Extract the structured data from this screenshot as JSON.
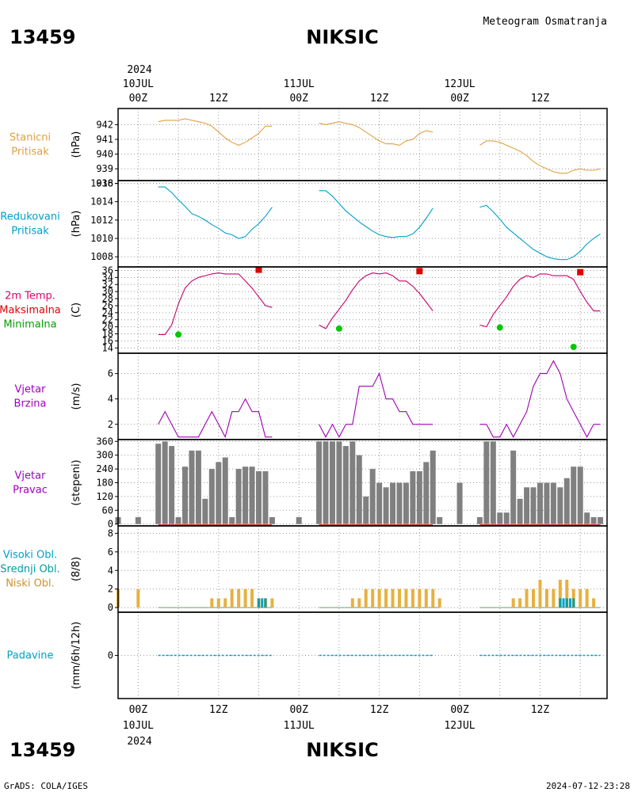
{
  "header": {
    "station_id": "13459",
    "station_name": "NIKSIC",
    "chart_title": "Meteogram Osmatranja",
    "year": "2024",
    "footer_left": "GrADS: COLA/IGES",
    "footer_right": "2024-07-12-23:28"
  },
  "time_axis": {
    "ticks": [
      {
        "t": 0,
        "label": "00Z"
      },
      {
        "t": 12,
        "label": "12Z"
      },
      {
        "t": 24,
        "label": "00Z"
      },
      {
        "t": 36,
        "label": "12Z"
      },
      {
        "t": 48,
        "label": "00Z"
      },
      {
        "t": 60,
        "label": "12Z"
      }
    ],
    "days": [
      {
        "t": 0,
        "label": "10JUL"
      },
      {
        "t": 24,
        "label": "11JUL"
      },
      {
        "t": 48,
        "label": "12JUL"
      }
    ],
    "range": [
      -3,
      70
    ]
  },
  "chart_data": [
    {
      "type": "line",
      "panel": "station-pressure",
      "labels": [
        "Stanicni",
        "Pritisak"
      ],
      "label_color": "#e0a040",
      "ylabel": "(hPa)",
      "ylim": [
        938.2,
        943.1
      ],
      "yticks": [
        938,
        939,
        940,
        941,
        942
      ],
      "color": "#e0a040",
      "segments": [
        {
          "x": [
            3,
            4,
            5,
            6,
            7,
            8,
            9,
            10,
            11,
            12,
            13,
            14,
            15,
            16,
            17,
            18,
            19,
            20
          ],
          "y": [
            942.2,
            942.3,
            942.3,
            942.3,
            942.4,
            942.3,
            942.2,
            942.1,
            941.9,
            941.5,
            941.1,
            940.8,
            940.6,
            940.8,
            941.1,
            941.4,
            941.9,
            941.9
          ]
        },
        {
          "x": [
            27,
            28,
            29,
            30,
            31,
            32,
            33,
            34,
            35,
            36,
            37,
            38,
            39,
            40,
            41,
            42,
            43,
            44
          ],
          "y": [
            942.1,
            942.0,
            942.1,
            942.2,
            942.1,
            942.0,
            941.8,
            941.5,
            941.2,
            940.9,
            940.7,
            940.7,
            940.6,
            940.9,
            941.0,
            941.4,
            941.6,
            941.5
          ]
        },
        {
          "x": [
            51,
            52,
            53,
            54,
            55,
            56,
            57,
            58,
            59,
            60,
            61,
            62,
            63,
            64,
            65,
            66,
            67,
            68,
            69
          ],
          "y": [
            940.6,
            940.9,
            940.9,
            940.8,
            940.6,
            940.4,
            940.2,
            939.9,
            939.5,
            939.2,
            939.0,
            938.8,
            938.7,
            938.7,
            938.9,
            939.0,
            938.9,
            938.9,
            939.0
          ]
        }
      ]
    },
    {
      "type": "line",
      "panel": "reduced-pressure",
      "labels": [
        "Redukovani",
        "Pritisak"
      ],
      "label_color": "#00a0c8",
      "ylabel": "(hPa)",
      "ylim": [
        1006.9,
        1016.3
      ],
      "yticks": [
        1008,
        1010,
        1012,
        1014,
        1016
      ],
      "color": "#00a0c8",
      "segments": [
        {
          "x": [
            3,
            4,
            5,
            6,
            7,
            8,
            9,
            10,
            11,
            12,
            13,
            14,
            15,
            16,
            17,
            18,
            19,
            20
          ],
          "y": [
            1015.6,
            1015.6,
            1015.0,
            1014.2,
            1013.5,
            1012.7,
            1012.4,
            1012.0,
            1011.5,
            1011.1,
            1010.6,
            1010.4,
            1010.0,
            1010.2,
            1011.0,
            1011.6,
            1012.4,
            1013.4
          ]
        },
        {
          "x": [
            27,
            28,
            29,
            30,
            31,
            32,
            33,
            34,
            35,
            36,
            37,
            38,
            39,
            40,
            41,
            42,
            43,
            44
          ],
          "y": [
            1015.2,
            1015.2,
            1014.6,
            1013.8,
            1013.0,
            1012.4,
            1011.8,
            1011.3,
            1010.8,
            1010.4,
            1010.2,
            1010.1,
            1010.2,
            1010.2,
            1010.5,
            1011.2,
            1012.2,
            1013.3
          ]
        },
        {
          "x": [
            51,
            52,
            53,
            54,
            55,
            56,
            57,
            58,
            59,
            60,
            61,
            62,
            63,
            64,
            65,
            66,
            67,
            68,
            69
          ],
          "y": [
            1013.4,
            1013.6,
            1012.9,
            1012.1,
            1011.2,
            1010.6,
            1010.0,
            1009.4,
            1008.8,
            1008.4,
            1008.0,
            1007.8,
            1007.7,
            1007.7,
            1008.0,
            1008.6,
            1009.4,
            1010.0,
            1010.5
          ]
        }
      ]
    },
    {
      "type": "line",
      "panel": "temperature",
      "labels": [
        "2m Temp.",
        "Maksimalna",
        "Minimalna"
      ],
      "label_colors": [
        "#e0006a",
        "#e00000",
        "#00a000"
      ],
      "ylabel": "(C)",
      "ylim": [
        12.5,
        37
      ],
      "yticks": [
        14,
        16,
        18,
        20,
        22,
        24,
        26,
        28,
        30,
        32,
        34,
        36
      ],
      "color": "#c8006e",
      "segments": [
        {
          "x": [
            3,
            4,
            5,
            6,
            7,
            8,
            9,
            10,
            11,
            12,
            13,
            14,
            15,
            16,
            17,
            18,
            19,
            20
          ],
          "y": [
            17.8,
            17.8,
            20.5,
            26.5,
            31.0,
            33.0,
            34.0,
            34.5,
            35.0,
            35.3,
            35.0,
            35.0,
            35.0,
            33.0,
            31.0,
            28.5,
            26.0,
            25.5
          ]
        },
        {
          "x": [
            27,
            28,
            29,
            30,
            31,
            32,
            33,
            34,
            35,
            36,
            37,
            38,
            39,
            40,
            41,
            42,
            43,
            44
          ],
          "y": [
            20.5,
            19.5,
            22.5,
            25.0,
            27.5,
            30.5,
            33.0,
            34.5,
            35.3,
            35.0,
            35.3,
            34.5,
            33.0,
            33.0,
            31.5,
            29.5,
            27.0,
            24.5
          ]
        },
        {
          "x": [
            51,
            52,
            53,
            54,
            55,
            56,
            57,
            58,
            59,
            60,
            61,
            62,
            63,
            64,
            65,
            66,
            67,
            68,
            69
          ],
          "y": [
            20.5,
            20.0,
            23.5,
            26.0,
            28.5,
            31.5,
            33.5,
            34.5,
            34.0,
            35.0,
            35.0,
            34.5,
            34.5,
            34.5,
            33.5,
            30.0,
            27.0,
            24.5,
            24.5
          ]
        }
      ],
      "maxima": {
        "x": [
          18,
          42,
          66
        ],
        "y": [
          36.2,
          35.8,
          35.5
        ],
        "color": "#e00000"
      },
      "minima": {
        "x": [
          6,
          30,
          54,
          65
        ],
        "y": [
          17.8,
          19.5,
          19.8,
          14.3
        ],
        "color": "#00c800"
      }
    },
    {
      "type": "line",
      "panel": "wind-speed",
      "labels": [
        "Vjetar",
        "Brzina"
      ],
      "label_color": "#a000c0",
      "ylabel": "(m/s)",
      "ylim": [
        0.8,
        7.6
      ],
      "yticks": [
        2,
        4,
        6
      ],
      "color": "#a000b4",
      "segments": [
        {
          "x": [
            3,
            4,
            5,
            6,
            7,
            8,
            9,
            10,
            11,
            12,
            13,
            14,
            15,
            16,
            17,
            18,
            19,
            20
          ],
          "y": [
            2,
            3,
            2,
            1,
            1,
            1,
            1,
            2,
            3,
            2,
            1,
            3,
            3,
            4,
            3,
            3,
            1,
            1
          ]
        },
        {
          "x": [
            27,
            28,
            29,
            30,
            31,
            32,
            33,
            34,
            35,
            36,
            37,
            38,
            39,
            40,
            41,
            42,
            43,
            44
          ],
          "y": [
            2,
            1,
            2,
            1,
            2,
            2,
            5,
            5,
            5,
            6,
            4,
            4,
            3,
            3,
            2,
            2,
            2,
            2
          ]
        },
        {
          "x": [
            51,
            52,
            53,
            54,
            55,
            56,
            57,
            58,
            59,
            60,
            61,
            62,
            63,
            64,
            65,
            66,
            67,
            68,
            69
          ],
          "y": [
            2,
            2,
            1,
            1,
            2,
            1,
            2,
            3,
            5,
            6,
            6,
            7,
            6,
            4,
            3,
            2,
            1,
            2,
            2
          ]
        }
      ]
    },
    {
      "type": "bar",
      "panel": "wind-direction",
      "labels": [
        "Vjetar",
        "Pravac"
      ],
      "label_color": "#a000c0",
      "ylabel": "(stepeni)",
      "ylim": [
        -8,
        368
      ],
      "yticks": [
        0,
        60,
        120,
        180,
        240,
        300,
        360
      ],
      "color": "#808080",
      "x": [
        -3,
        0,
        3,
        4,
        5,
        6,
        7,
        8,
        9,
        10,
        11,
        12,
        13,
        14,
        15,
        16,
        17,
        18,
        19,
        20,
        24,
        27,
        28,
        29,
        30,
        31,
        32,
        33,
        34,
        35,
        36,
        37,
        38,
        39,
        40,
        41,
        42,
        43,
        44,
        45,
        48,
        51,
        52,
        53,
        54,
        55,
        56,
        57,
        58,
        59,
        60,
        61,
        62,
        63,
        64,
        65,
        66,
        67,
        68,
        69
      ],
      "values": [
        30,
        30,
        350,
        360,
        340,
        30,
        250,
        320,
        320,
        110,
        240,
        270,
        290,
        30,
        240,
        250,
        250,
        230,
        230,
        30,
        30,
        360,
        360,
        360,
        360,
        340,
        360,
        300,
        120,
        240,
        180,
        160,
        180,
        180,
        180,
        230,
        230,
        270,
        320,
        30,
        180,
        30,
        360,
        360,
        50,
        50,
        320,
        110,
        160,
        160,
        180,
        180,
        180,
        160,
        200,
        250,
        250,
        50,
        30,
        30
      ],
      "calm_color": "#cc2a2a"
    },
    {
      "type": "bar",
      "panel": "cloud-cover",
      "labels": [
        "Visoki Obl.",
        "Srednji Obl.",
        "Niski Obl."
      ],
      "label_colors": [
        "#00a0c8",
        "#00a0a0",
        "#d09030"
      ],
      "ylabel": "(8/8)",
      "ylim": [
        -0.5,
        8.8
      ],
      "yticks": [
        0,
        2,
        4,
        6,
        8
      ],
      "low_color": "#e8b040",
      "mid_color": "#00a0a0",
      "high_color": "#00a0d8",
      "low": {
        "x": [
          -3,
          0,
          11,
          12,
          13,
          14,
          15,
          16,
          17,
          18,
          19,
          20,
          32,
          33,
          34,
          35,
          36,
          37,
          38,
          39,
          40,
          41,
          42,
          43,
          44,
          45,
          56,
          57,
          58,
          59,
          60,
          61,
          62,
          63,
          64,
          65,
          66,
          67,
          68
        ],
        "values": [
          2,
          2,
          1,
          1,
          1,
          2,
          2,
          2,
          2,
          1,
          1,
          1,
          1,
          1,
          2,
          2,
          2,
          2,
          2,
          2,
          2,
          2,
          2,
          2,
          2,
          1,
          1,
          1,
          2,
          2,
          3,
          2,
          2,
          3,
          3,
          2,
          2,
          2,
          1
        ]
      },
      "mid": {
        "x": [
          18,
          19,
          63,
          64,
          65
        ],
        "values": [
          1,
          1,
          1,
          1,
          1
        ]
      },
      "high": {
        "x": [
          18.5,
          63.5,
          64.5
        ],
        "values": [
          1,
          1,
          1
        ]
      }
    },
    {
      "type": "line",
      "panel": "precipitation",
      "labels": [
        "Padavine"
      ],
      "label_color": "#00a0c8",
      "ylabel": "(mm/6h/12h)",
      "ylim": [
        -1,
        1
      ],
      "yticks": [
        0
      ],
      "color": "#00a0c8",
      "segments": [
        {
          "x": [
            3,
            20
          ],
          "y": [
            0,
            0
          ]
        },
        {
          "x": [
            27,
            44
          ],
          "y": [
            0,
            0
          ]
        },
        {
          "x": [
            51,
            69
          ],
          "y": [
            0,
            0
          ]
        }
      ]
    }
  ]
}
